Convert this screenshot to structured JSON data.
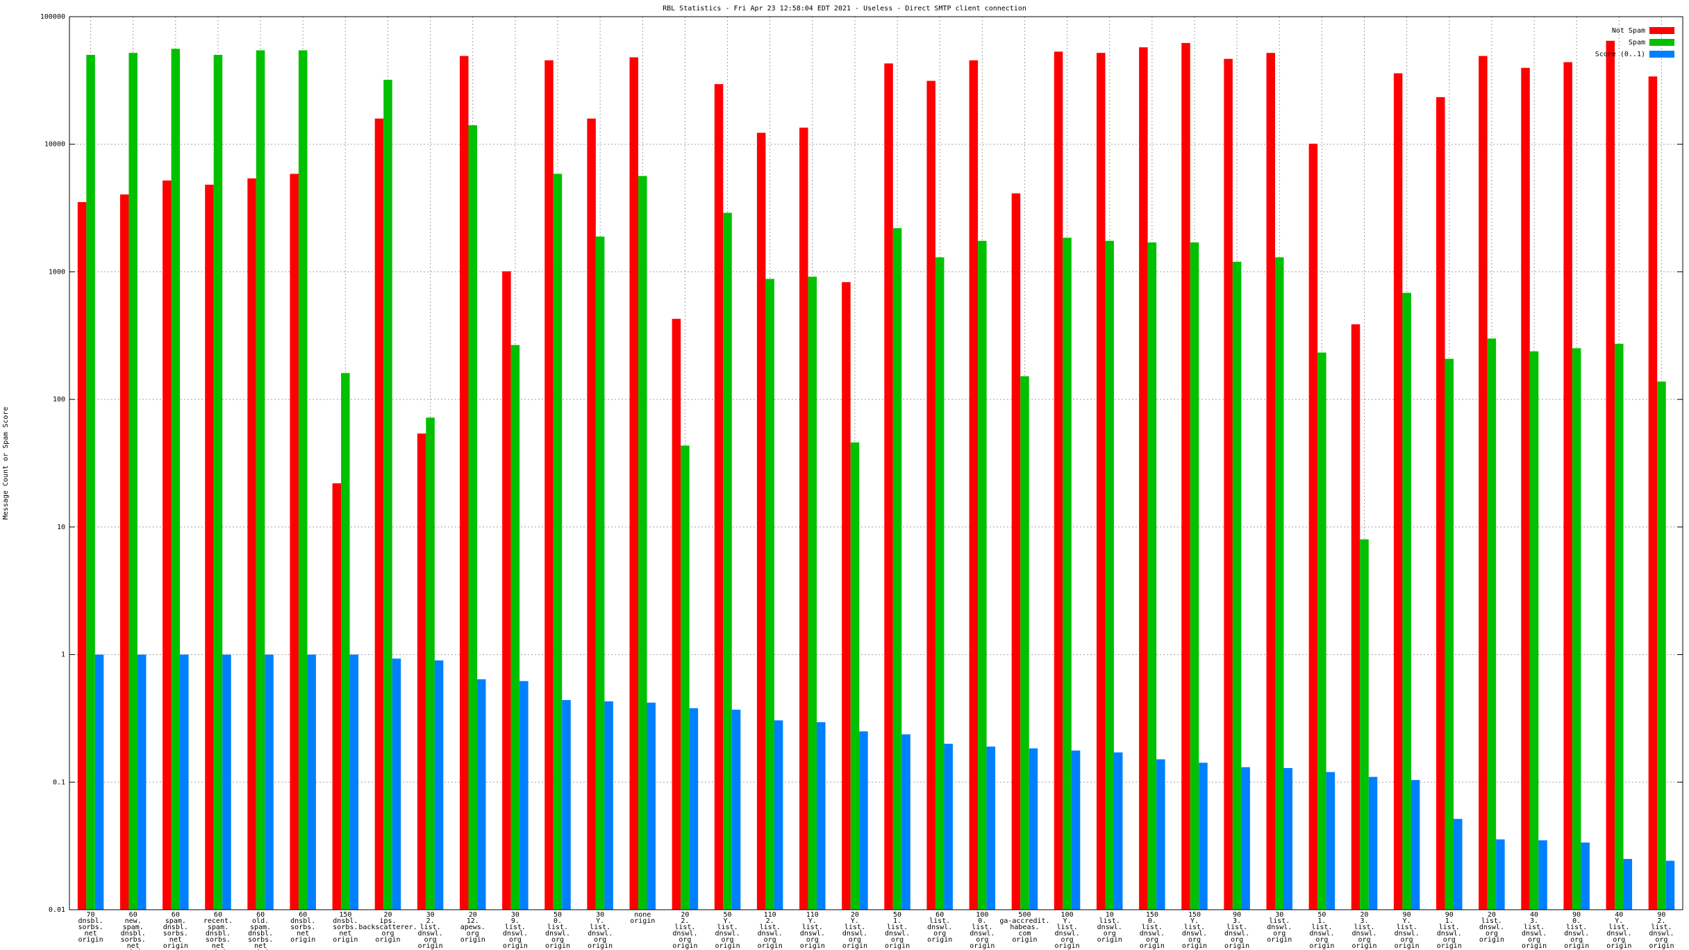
{
  "chart_data": {
    "type": "bar",
    "title": "RBL Statistics - Fri Apr 23 12:58:04 EDT 2021 - Useless - Direct SMTP client connection",
    "y_label": "Message Count or Spam Score",
    "log_y": true,
    "grid": true,
    "legend": "top-right",
    "ylim": [
      0.01,
      100000
    ],
    "yticks": [
      0.01,
      0.1,
      1,
      10,
      100,
      1000,
      10000,
      100000
    ],
    "categories": [
      "70\ndnsbl.\nsorbs.\nnet\norigin",
      "60\nnew.\nspam.\ndnsbl.\nsorbs.\nnet\norigin",
      "60\nspam.\ndnsbl.\nsorbs.\nnet\norigin",
      "60\nrecent.\nspam.\ndnsbl.\nsorbs.\nnet\norigin",
      "60\nold.\nspam.\ndnsbl.\nsorbs.\nnet\norigin",
      "60\ndnsbl.\nsorbs.\nnet\norigin",
      "150\ndnsbl.\nsorbs.\nnet\norigin",
      "20\nips.\nbackscatterer.\norg\norigin",
      "30\n2.\nlist.\ndnswl.\norg\norigin",
      "20\n12.\napews.\norg\norigin",
      "30\n9.\nlist.\ndnswl.\norg\norigin",
      "50\n0.\nlist.\ndnswl.\norg\norigin",
      "30\nY.\nlist.\ndnswl.\norg\norigin",
      "none\norigin",
      "20\n2.\nlist.\ndnswl.\norg\norigin",
      "50\nY.\nlist.\ndnswl.\norg\norigin",
      "110\n2.\nlist.\ndnswl.\norg\norigin",
      "110\nY.\nlist.\ndnswl.\norg\norigin",
      "20\nY.\nlist.\ndnswl.\norg\norigin",
      "50\n1.\nlist.\ndnswl.\norg\norigin",
      "60\nlist.\ndnswl.\norg\norigin",
      "100\n0.\nlist.\ndnswl.\norg\norigin",
      "500\nga-accredit.\nhabeas.\ncom\norigin",
      "100\nY.\nlist.\ndnswl.\norg\norigin",
      "10\nlist.\ndnswl.\norg\norigin",
      "150\n0.\nlist.\ndnswl.\norg\norigin",
      "150\nY.\nlist.\ndnswl.\norg\norigin",
      "90\n3.\nlist.\ndnswl.\norg\norigin",
      "30\nlist.\ndnswl.\norg\norigin",
      "50\n1.\nlist.\ndnswl.\norg\norigin",
      "20\n3.\nlist.\ndnswl.\norg\norigin",
      "90\nY.\nlist.\ndnswl.\norg\norigin",
      "90\n1.\nlist.\ndnswl.\norg\norigin",
      "20\nlist.\ndnswl.\norg\norigin",
      "40\n3.\nlist.\ndnswl.\norg\norigin",
      "90\n0.\nlist.\ndnswl.\norg\norigin",
      "40\nY.\nlist.\ndnswl.\norg\norigin",
      "90\n2.\nlist.\ndnswl.\norg\norigin"
    ],
    "series": [
      {
        "name": "Not Spam",
        "color": "#ff0000",
        "values": [
          3520,
          4040,
          5200,
          4820,
          5400,
          5860,
          22,
          15900,
          54,
          49200,
          1010,
          45500,
          15900,
          48000,
          428,
          29600,
          12300,
          13500,
          830,
          43000,
          31400,
          45500,
          4120,
          53200,
          52000,
          57500,
          62200,
          46700,
          52000,
          10100,
          388,
          36000,
          23400,
          49200,
          39700,
          44000,
          64700,
          34000
        ]
      },
      {
        "name": "Spam",
        "color": "#00c000",
        "values": [
          50200,
          52000,
          56000,
          50200,
          54500,
          54500,
          161,
          32000,
          72,
          14100,
          267,
          5860,
          1890,
          5640,
          43.5,
          2900,
          880,
          916,
          46,
          2200,
          1300,
          1750,
          152,
          1850,
          1750,
          1700,
          1700,
          1200,
          1300,
          233,
          8,
          684,
          208,
          300,
          238,
          252,
          273,
          138
        ]
      },
      {
        "name": "Score (0..1)",
        "color": "#0080ff",
        "values": [
          1,
          1,
          1,
          1,
          1,
          1,
          1,
          0.93,
          0.9,
          0.64,
          0.62,
          0.44,
          0.43,
          0.42,
          0.38,
          0.37,
          0.305,
          0.295,
          0.25,
          0.237,
          0.2,
          0.19,
          0.184,
          0.177,
          0.171,
          0.151,
          0.142,
          0.131,
          0.129,
          0.12,
          0.11,
          0.104,
          0.0515,
          0.0356,
          0.035,
          0.0336,
          0.025,
          0.0242
        ]
      }
    ]
  }
}
